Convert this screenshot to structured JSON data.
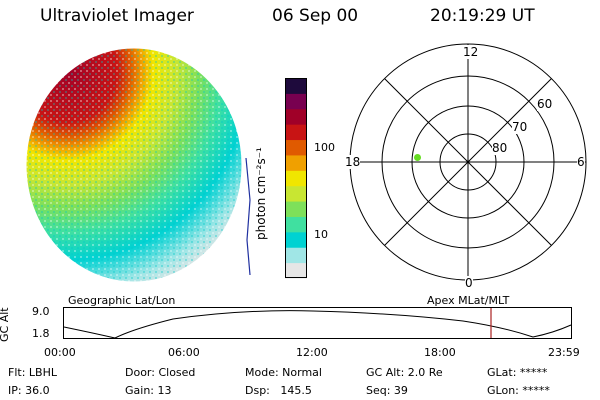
{
  "header": {
    "instrument": "Ultraviolet Imager",
    "date": "06 Sep 00",
    "time": "20:19:29 UT"
  },
  "image_panel": {
    "description_icon": "auroral-oval-image"
  },
  "colorbar": {
    "unit_label": "photon cm⁻²s⁻¹",
    "tick_labels": [
      "100",
      "10"
    ],
    "scale": "log",
    "colors": [
      "#e6e6e6",
      "#a0e6e6",
      "#00d2d2",
      "#40e0a0",
      "#7ee05a",
      "#c8e632",
      "#f0e600",
      "#f0a000",
      "#e05a00",
      "#c81414",
      "#a00028",
      "#780050",
      "#1e0a3c"
    ]
  },
  "polar_plot": {
    "mlt_labels": [
      "12",
      "18",
      "6",
      "0"
    ],
    "lat_labels": [
      "60",
      "70",
      "80"
    ],
    "marker_color": "#66dd22"
  },
  "timeline": {
    "left_label": "Geographic Lat/Lon",
    "right_label": "Apex MLat/MLT",
    "y_axis_label": "GC Alt",
    "y_ticks": [
      "9.0",
      "1.8"
    ],
    "x_ticks": [
      "00:00",
      "06:00",
      "12:00",
      "18:00",
      "23:59"
    ],
    "current_marker_color": "#aa2222"
  },
  "status": {
    "flt": "Flt: LBHL",
    "ip": "IP: 36.0",
    "door": "Door: Closed",
    "gain": "Gain: 13",
    "mode": "Mode: Normal",
    "dsp": "Dsp:   145.5",
    "gcalt": "GC Alt: 2.0 Re",
    "seq": "Seq: 39",
    "glat": "GLat: *****",
    "glon": "GLon: *****"
  }
}
